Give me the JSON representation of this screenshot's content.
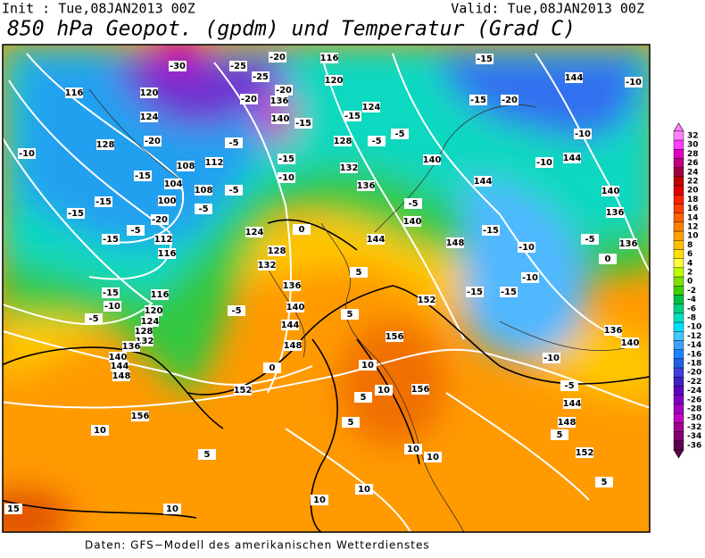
{
  "header": {
    "init": "Init : Tue,08JAN2013 00Z",
    "valid": "Valid: Tue,08JAN2013 00Z",
    "title": "850 hPa Geopot. (gpdm) und Temperatur (Grad C)"
  },
  "footer": "Daten: GFS−Modell des amerikanischen Wetterdienstes",
  "colorbar": {
    "labels": [
      32,
      30,
      28,
      26,
      24,
      22,
      20,
      18,
      16,
      14,
      12,
      10,
      8,
      6,
      4,
      2,
      0,
      -2,
      -4,
      -6,
      -8,
      -10,
      -12,
      -14,
      -16,
      -18,
      -20,
      -22,
      -24,
      -26,
      -28,
      -30,
      -32,
      -34,
      -36
    ],
    "colors": [
      "#ff80ff",
      "#ff40ff",
      "#e000c0",
      "#c00080",
      "#a00040",
      "#c00000",
      "#e00000",
      "#ff2000",
      "#ff4000",
      "#ff6000",
      "#ff8000",
      "#ffa000",
      "#ffc000",
      "#ffe000",
      "#ffff40",
      "#c0ff00",
      "#80e000",
      "#40d000",
      "#00c040",
      "#00d080",
      "#00e0c0",
      "#00e0ff",
      "#40c8ff",
      "#40a0ff",
      "#2080ff",
      "#2060e0",
      "#4040e0",
      "#4020c0",
      "#6000c0",
      "#8000c0",
      "#a000c0",
      "#c000c0",
      "#a00090",
      "#800070",
      "#600050"
    ]
  },
  "map": {
    "geopotential_labels": [
      120,
      116,
      124,
      128,
      112,
      108,
      104,
      100,
      108,
      112,
      116,
      116,
      120,
      136,
      140,
      124,
      128,
      132,
      136,
      140,
      144,
      140,
      144,
      148,
      124,
      128,
      132,
      136,
      140,
      144,
      148,
      152,
      156,
      152,
      156,
      156,
      144,
      148,
      152,
      144,
      144,
      140,
      136,
      136,
      136,
      140,
      116,
      120,
      124,
      128,
      132,
      136,
      140,
      144,
      148
    ],
    "temperature_labels": [
      -30,
      -25,
      -20,
      -25,
      -20,
      -20,
      -15,
      -5,
      -15,
      -10,
      -20,
      -15,
      -20,
      -15,
      -10,
      -15,
      -5,
      -15,
      -5,
      -5,
      -5,
      0,
      5,
      5,
      10,
      10,
      5,
      5,
      10,
      10,
      10,
      10,
      10,
      15,
      10,
      5,
      0,
      -15,
      -20,
      -15,
      -15,
      -10,
      -10,
      -15,
      -15,
      -10,
      -10,
      -5,
      -5,
      -10,
      0,
      5,
      5,
      -5,
      -5,
      -10,
      -10,
      -15,
      -5,
      -5,
      -15
    ]
  }
}
